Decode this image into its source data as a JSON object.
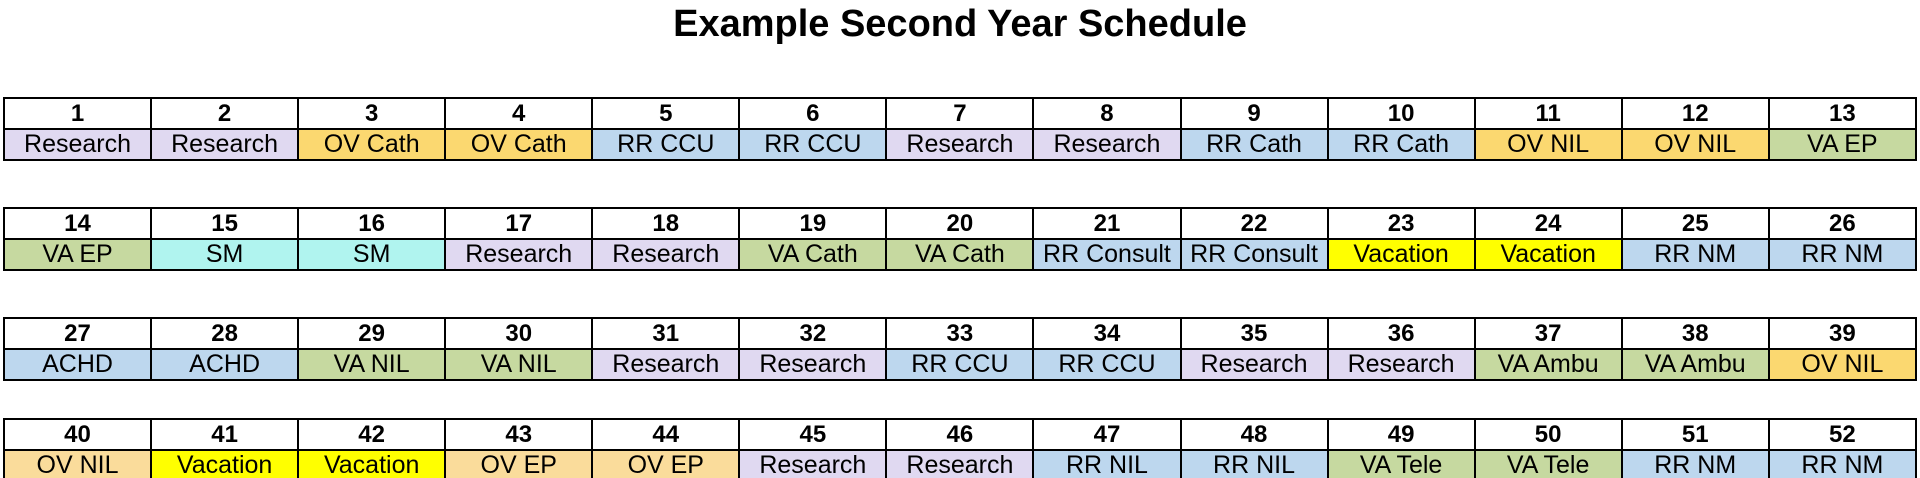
{
  "title": "Example Second Year Schedule",
  "palette": {
    "research": "#E0D9F1",
    "ov": "#FBD870",
    "ov_light": "#FADC9B",
    "rr": "#BDD7EE",
    "va": "#C6D9A0",
    "sm": "#B0F4EF",
    "vacation": "#FFFF00",
    "header_bg": "#FFFFFF",
    "border": "#000000",
    "text": "#000000"
  },
  "rows": [
    {
      "name": "weeks-1-13",
      "cells": [
        {
          "week": "1",
          "rotation": "Research",
          "type": "research"
        },
        {
          "week": "2",
          "rotation": "Research",
          "type": "research"
        },
        {
          "week": "3",
          "rotation": "OV Cath",
          "type": "ov"
        },
        {
          "week": "4",
          "rotation": "OV Cath",
          "type": "ov"
        },
        {
          "week": "5",
          "rotation": "RR CCU",
          "type": "rr"
        },
        {
          "week": "6",
          "rotation": "RR CCU",
          "type": "rr"
        },
        {
          "week": "7",
          "rotation": "Research",
          "type": "research"
        },
        {
          "week": "8",
          "rotation": "Research",
          "type": "research"
        },
        {
          "week": "9",
          "rotation": "RR Cath",
          "type": "rr"
        },
        {
          "week": "10",
          "rotation": "RR Cath",
          "type": "rr"
        },
        {
          "week": "11",
          "rotation": "OV NIL",
          "type": "ov"
        },
        {
          "week": "12",
          "rotation": "OV NIL",
          "type": "ov"
        },
        {
          "week": "13",
          "rotation": "VA EP",
          "type": "va"
        }
      ]
    },
    {
      "name": "weeks-14-26",
      "cells": [
        {
          "week": "14",
          "rotation": "VA EP",
          "type": "va"
        },
        {
          "week": "15",
          "rotation": "SM",
          "type": "sm"
        },
        {
          "week": "16",
          "rotation": "SM",
          "type": "sm"
        },
        {
          "week": "17",
          "rotation": "Research",
          "type": "research"
        },
        {
          "week": "18",
          "rotation": "Research",
          "type": "research"
        },
        {
          "week": "19",
          "rotation": "VA Cath",
          "type": "va"
        },
        {
          "week": "20",
          "rotation": "VA Cath",
          "type": "va"
        },
        {
          "week": "21",
          "rotation": "RR Consult",
          "type": "rr"
        },
        {
          "week": "22",
          "rotation": "RR Consult",
          "type": "rr"
        },
        {
          "week": "23",
          "rotation": "Vacation",
          "type": "vacation"
        },
        {
          "week": "24",
          "rotation": "Vacation",
          "type": "vacation"
        },
        {
          "week": "25",
          "rotation": "RR NM",
          "type": "rr"
        },
        {
          "week": "26",
          "rotation": "RR NM",
          "type": "rr"
        }
      ]
    },
    {
      "name": "weeks-27-39",
      "cells": [
        {
          "week": "27",
          "rotation": "ACHD",
          "type": "rr"
        },
        {
          "week": "28",
          "rotation": "ACHD",
          "type": "rr"
        },
        {
          "week": "29",
          "rotation": "VA NIL",
          "type": "va"
        },
        {
          "week": "30",
          "rotation": "VA NIL",
          "type": "va"
        },
        {
          "week": "31",
          "rotation": "Research",
          "type": "research"
        },
        {
          "week": "32",
          "rotation": "Research",
          "type": "research"
        },
        {
          "week": "33",
          "rotation": "RR CCU",
          "type": "rr"
        },
        {
          "week": "34",
          "rotation": "RR CCU",
          "type": "rr"
        },
        {
          "week": "35",
          "rotation": "Research",
          "type": "research"
        },
        {
          "week": "36",
          "rotation": "Research",
          "type": "research"
        },
        {
          "week": "37",
          "rotation": "VA Ambu",
          "type": "va"
        },
        {
          "week": "38",
          "rotation": "VA Ambu",
          "type": "va"
        },
        {
          "week": "39",
          "rotation": "OV NIL",
          "type": "ov"
        }
      ]
    },
    {
      "name": "weeks-40-52",
      "cells": [
        {
          "week": "40",
          "rotation": "OV NIL",
          "type": "ov_light"
        },
        {
          "week": "41",
          "rotation": "Vacation",
          "type": "vacation"
        },
        {
          "week": "42",
          "rotation": "Vacation",
          "type": "vacation"
        },
        {
          "week": "43",
          "rotation": "OV EP",
          "type": "ov_light"
        },
        {
          "week": "44",
          "rotation": "OV EP",
          "type": "ov_light"
        },
        {
          "week": "45",
          "rotation": "Research",
          "type": "research"
        },
        {
          "week": "46",
          "rotation": "Research",
          "type": "research"
        },
        {
          "week": "47",
          "rotation": "RR NIL",
          "type": "rr"
        },
        {
          "week": "48",
          "rotation": "RR NIL",
          "type": "rr"
        },
        {
          "week": "49",
          "rotation": "VA Tele",
          "type": "va"
        },
        {
          "week": "50",
          "rotation": "VA Tele",
          "type": "va"
        },
        {
          "week": "51",
          "rotation": "RR NM",
          "type": "rr"
        },
        {
          "week": "52",
          "rotation": "RR NM",
          "type": "rr"
        }
      ]
    }
  ]
}
